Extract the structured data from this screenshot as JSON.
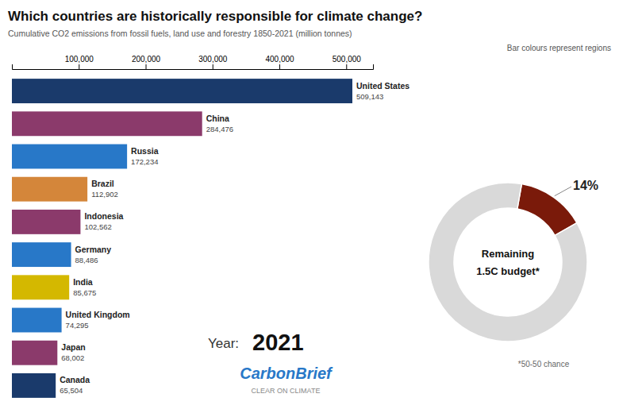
{
  "chart_data": [
    {
      "type": "bar",
      "title": "Which countries are historically responsible for climate change?",
      "subtitle": "Cumulative CO2 emissions from fossil fuels, land use and forestry 1850-2021 (million tonnes)",
      "orientation": "horizontal",
      "categories": [
        "United States",
        "China",
        "Russia",
        "Brazil",
        "Indonesia",
        "Germany",
        "India",
        "United Kingdom",
        "Japan",
        "Canada"
      ],
      "values": [
        509143,
        284476,
        172234,
        112902,
        102562,
        88486,
        85675,
        74295,
        68002,
        65504
      ],
      "value_labels": [
        "509,143",
        "284,476",
        "172,234",
        "112,902",
        "102,562",
        "88,486",
        "85,675",
        "74,295",
        "68,002",
        "65,504"
      ],
      "data_labels": true,
      "colors": [
        "#1a3a6b",
        "#8b3a6b",
        "#2878c8",
        "#d4863a",
        "#8b3a6b",
        "#2878c8",
        "#d4b800",
        "#2878c8",
        "#8b3a6b",
        "#1a3a6b"
      ],
      "xlim": [
        0,
        540000
      ],
      "xticks": [
        {
          "value": 100000,
          "label": "100,000"
        },
        {
          "value": 200000,
          "label": "200,000"
        },
        {
          "value": 300000,
          "label": "300,000"
        },
        {
          "value": 400000,
          "label": "400,000"
        },
        {
          "value": 500000,
          "label": "500,000"
        }
      ],
      "annotations": [
        "Bar colours represent regions",
        "Year:",
        "2021",
        "CarbonBrief",
        "CLEAR ON CLIMATE"
      ]
    },
    {
      "type": "pie",
      "values": [
        14,
        86
      ],
      "value_labels": [
        "14%",
        null
      ],
      "data_labels": true,
      "colors": [
        "#7a1a0a",
        "#d9d9d9"
      ],
      "annotations": [
        "Remaining",
        "1.5C budget*",
        "*50-50 chance"
      ]
    }
  ]
}
